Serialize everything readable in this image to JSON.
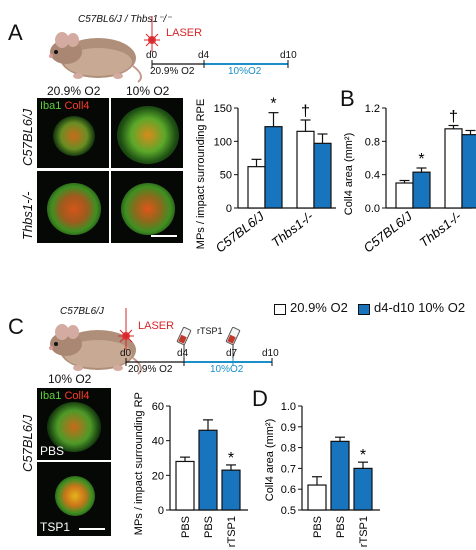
{
  "colors": {
    "white_bar": "#ffffff",
    "blue_bar": "#1874bd",
    "timeline_blue": "#1c8fc9",
    "laser_red": "#d7252a",
    "iba1_green": "#3fae2a",
    "coll4_red": "#e0231f"
  },
  "panelA": {
    "letter": "A",
    "strain_title": "C57BL6/J / Thbs1⁻/⁻",
    "laser": "LASER",
    "timeline": {
      "d0": "d0",
      "d4": "d4",
      "d10": "d10",
      "normoxia": "20.9% O2",
      "hypoxia": "10%O2"
    },
    "col_labels": [
      "20.9% O2",
      "10% O2"
    ],
    "row_labels": [
      "C57BL6/J",
      "Thbs1-/-"
    ],
    "stain_iba1": "Iba1",
    "stain_coll4": "Coll4"
  },
  "panelB": {
    "letter": "B"
  },
  "panelC": {
    "letter": "C",
    "strain_title": "C57BL6/J",
    "laser": "LASER",
    "rtsp1": "rTSP1",
    "timeline": {
      "d0": "d0",
      "d4": "d4",
      "d7": "d7",
      "d10": "d10",
      "normoxia": "20.9% O2",
      "hypoxia": "10%O2"
    },
    "col_label": "10% O2",
    "row_label": "C57BL6/J",
    "stain_iba1": "Iba1",
    "stain_coll4": "Coll4",
    "image_labels": [
      "PBS",
      "TSP1"
    ]
  },
  "panelD": {
    "letter": "D"
  },
  "legend": {
    "white": "20.9% O2",
    "blue": "d4-d10 10% O2"
  },
  "chart_data": [
    {
      "id": "A-chart",
      "type": "bar",
      "ylabel": "MPs / impact surrounding RPE",
      "ylim": [
        0,
        150
      ],
      "yticks": [
        0,
        50,
        100,
        150
      ],
      "groups": [
        "C57BL6/J",
        "Thbs1-/-"
      ],
      "series": [
        {
          "values": [
            62,
            115
          ],
          "errors": [
            11,
            17
          ],
          "color": "white"
        },
        {
          "values": [
            122,
            97
          ],
          "errors": [
            21,
            14
          ],
          "color": "blue"
        }
      ],
      "annotations": [
        {
          "text": "*",
          "group": 0,
          "series": 1
        },
        {
          "text": "†",
          "group": 1,
          "series": 0
        }
      ]
    },
    {
      "id": "B-chart",
      "type": "bar",
      "ylabel": "Coll4 area (mm²)",
      "ylim": [
        0,
        1.2
      ],
      "yticks": [
        0,
        0.4,
        0.8,
        1.2
      ],
      "groups": [
        "C57BL6/J",
        "Thbs1-/-"
      ],
      "series": [
        {
          "values": [
            0.3,
            0.95
          ],
          "errors": [
            0.03,
            0.04
          ],
          "color": "white"
        },
        {
          "values": [
            0.43,
            0.88
          ],
          "errors": [
            0.05,
            0.05
          ],
          "color": "blue"
        }
      ],
      "annotations": [
        {
          "text": "*",
          "group": 0,
          "series": 1
        },
        {
          "text": "†",
          "group": 1,
          "series": 0
        }
      ]
    },
    {
      "id": "C-chart",
      "type": "bar",
      "ylabel": "MPs / impact surrounding RPE",
      "ylim": [
        0,
        60
      ],
      "yticks": [
        0,
        20,
        40,
        60
      ],
      "categories": [
        "PBS",
        "PBS",
        "rTSP1"
      ],
      "values": [
        28,
        46,
        23
      ],
      "errors": [
        2.5,
        6,
        3
      ],
      "colors": [
        "white",
        "blue",
        "blue"
      ],
      "annotations": [
        {
          "text": "*",
          "index": 2
        }
      ]
    },
    {
      "id": "D-chart",
      "type": "bar",
      "ylabel": "Coll4 area (mm²)",
      "ylim": [
        0.5,
        1.0
      ],
      "yticks": [
        0.5,
        0.6,
        0.7,
        0.8,
        0.9,
        1.0
      ],
      "categories": [
        "PBS",
        "PBS",
        "rTSP1"
      ],
      "values": [
        0.62,
        0.83,
        0.7
      ],
      "errors": [
        0.04,
        0.02,
        0.03
      ],
      "colors": [
        "white",
        "blue",
        "blue"
      ],
      "annotations": [
        {
          "text": "*",
          "index": 2
        }
      ]
    }
  ]
}
